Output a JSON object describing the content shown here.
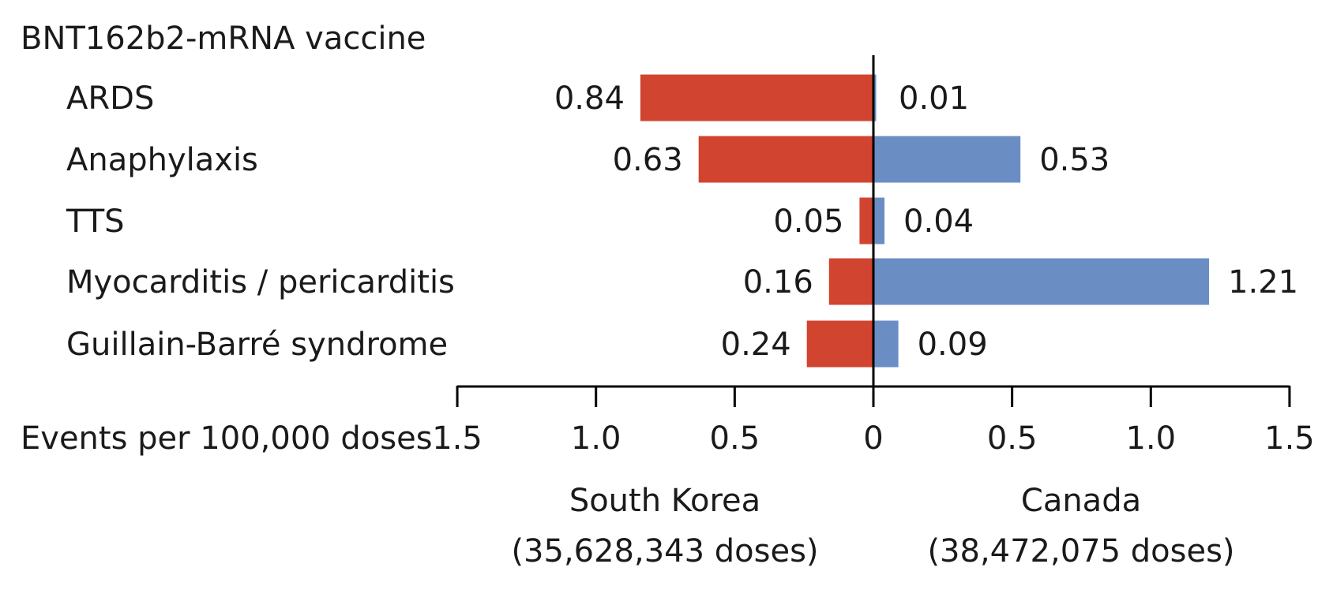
{
  "chart_data": {
    "type": "bar",
    "title": "BNT162b2-mRNA vaccine",
    "xlabel": "Events per 100,000 doses",
    "categories": [
      "ARDS",
      "Anaphylaxis",
      "TTS",
      "Myocarditis / pericarditis",
      "Guillain-Barré syndrome"
    ],
    "series": [
      {
        "name": "South Korea",
        "subtitle": "(35,628,343 doses)",
        "color": "#d04430",
        "values": [
          0.84,
          0.63,
          0.05,
          0.16,
          0.24
        ],
        "labels": [
          "0.84",
          "0.63",
          "0.05",
          "0.16",
          "0.24"
        ]
      },
      {
        "name": "Canada",
        "subtitle": "(38,472,075 doses)",
        "color": "#6a8ec4",
        "values": [
          0.01,
          0.53,
          0.04,
          1.21,
          0.09
        ],
        "labels": [
          "0.01",
          "0.53",
          "0.04",
          "1.21",
          "0.09"
        ]
      }
    ],
    "xlim": [
      0,
      1.5
    ],
    "ticks": [
      {
        "value": -1.5,
        "label": "1.5"
      },
      {
        "value": -1.0,
        "label": "1.0"
      },
      {
        "value": -0.5,
        "label": "0.5"
      },
      {
        "value": 0,
        "label": "0"
      },
      {
        "value": 0.5,
        "label": "0.5"
      },
      {
        "value": 1.0,
        "label": "1.0"
      },
      {
        "value": 1.5,
        "label": "1.5"
      }
    ],
    "grid": false,
    "legend": "below axis"
  }
}
